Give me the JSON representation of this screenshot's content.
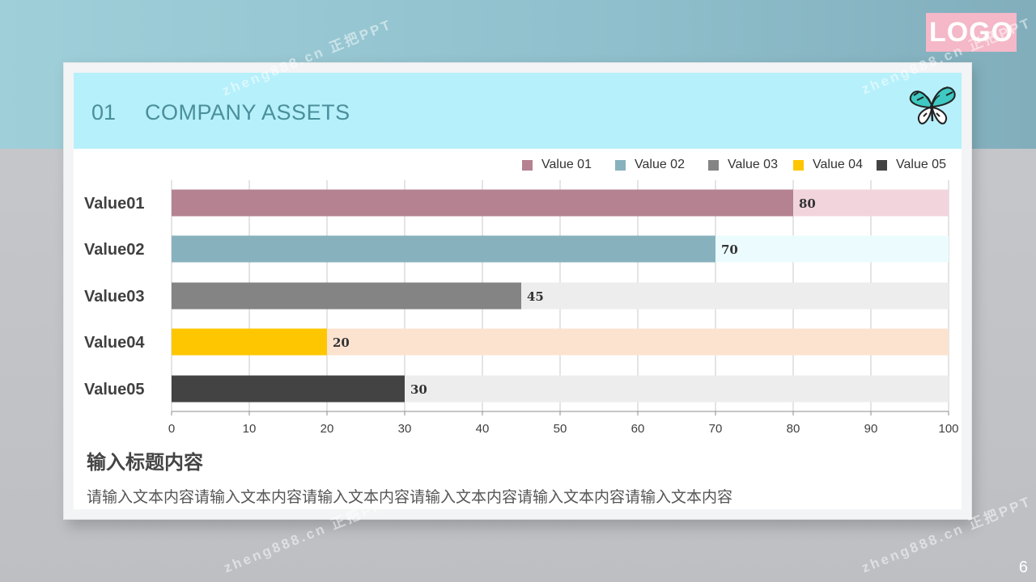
{
  "logo_text": "LOGO",
  "page_number": "6",
  "watermark": "zheng888.cn 正把PPT",
  "header": {
    "number": "01",
    "title": "COMPANY ASSETS",
    "icon": "butterfly-icon"
  },
  "text_block": {
    "title": "输入标题内容",
    "body": "请输入文本内容请输入文本内容请输入文本内容请输入文本内容请输入文本内容请输入文本内容"
  },
  "chart_data": {
    "type": "bar",
    "orientation": "horizontal",
    "categories": [
      "Value01",
      "Value02",
      "Value03",
      "Value04",
      "Value05"
    ],
    "values": [
      80,
      70,
      45,
      20,
      30
    ],
    "background_values": [
      100,
      100,
      100,
      100,
      100
    ],
    "data_labels": [
      "80",
      "70",
      "45",
      "20",
      "30"
    ],
    "legend": [
      "Value 01",
      "Value 02",
      "Value 03",
      "Value 04",
      "Value 05"
    ],
    "legend_position": "top-right",
    "xlim": [
      0,
      100
    ],
    "xticks": [
      "0",
      "10",
      "20",
      "30",
      "40",
      "50",
      "60",
      "70",
      "80",
      "90",
      "100"
    ],
    "grid": true,
    "colors": [
      "#b48291",
      "#88b1be",
      "#848484",
      "#fec600",
      "#434343"
    ],
    "track_colors": [
      "#f2d4dd",
      "#ecfbfe",
      "#ededed",
      "#fbe3cf",
      "#ededed"
    ]
  },
  "colors": {
    "header_bg": "#b6f0fb",
    "header_text": "#4a8f9b",
    "logo_bg": "#f4b8c8",
    "top_band": "#9fcfd9"
  }
}
